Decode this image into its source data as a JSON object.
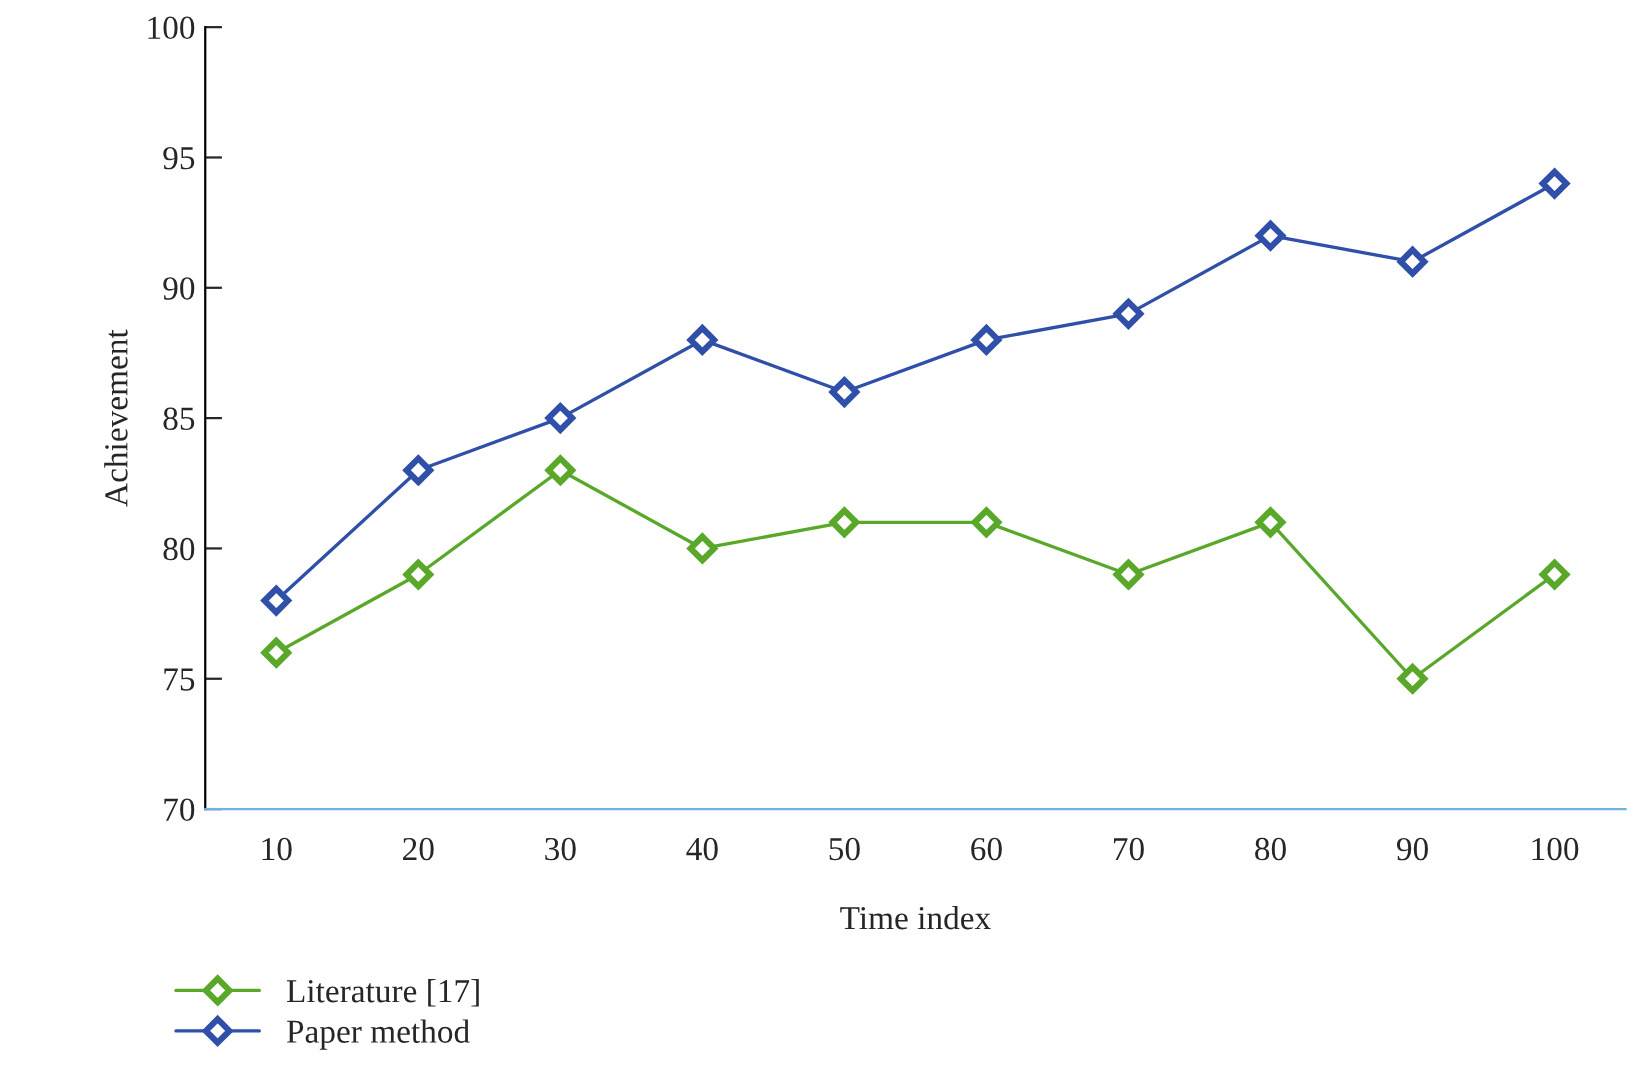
{
  "chart_data": {
    "type": "line",
    "xlabel": "Time index",
    "ylabel": "Achievement",
    "categories": [
      "10",
      "20",
      "30",
      "40",
      "50",
      "60",
      "70",
      "80",
      "90",
      "100"
    ],
    "series": [
      {
        "name": "Literature [17]",
        "color": "#5aa82a",
        "values": [
          76,
          79,
          83,
          80,
          81,
          81,
          79,
          81,
          75,
          79
        ]
      },
      {
        "name": "Paper method",
        "color": "#2f4fa8",
        "values": [
          78,
          83,
          85,
          88,
          86,
          88,
          89,
          92,
          91,
          94
        ]
      }
    ],
    "ylim": [
      70,
      100
    ],
    "yticks": [
      70,
      75,
      80,
      85,
      90,
      95,
      100
    ],
    "grid": false,
    "legend": "bottom left",
    "marker": "diamond",
    "line_style": "solid"
  }
}
